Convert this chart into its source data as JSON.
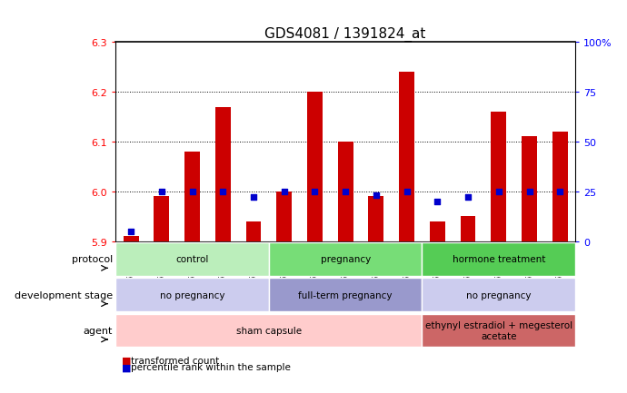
{
  "title": "GDS4081 / 1391824_at",
  "samples": [
    "GSM796392",
    "GSM796393",
    "GSM796394",
    "GSM796395",
    "GSM796396",
    "GSM796397",
    "GSM796398",
    "GSM796399",
    "GSM796400",
    "GSM796401",
    "GSM796402",
    "GSM796403",
    "GSM796404",
    "GSM796405",
    "GSM796406"
  ],
  "transformed_count": [
    5.91,
    5.99,
    6.08,
    6.17,
    5.94,
    6.0,
    6.2,
    6.1,
    5.99,
    6.24,
    5.94,
    5.95,
    6.16,
    6.11,
    6.12
  ],
  "percentile_rank": [
    5,
    25,
    25,
    25,
    22,
    25,
    25,
    25,
    23,
    25,
    20,
    22,
    25,
    25,
    25
  ],
  "ylim_left": [
    5.9,
    6.3
  ],
  "ylim_right": [
    0,
    100
  ],
  "yticks_left": [
    5.9,
    6.0,
    6.1,
    6.2,
    6.3
  ],
  "yticks_right": [
    0,
    25,
    50,
    75,
    100
  ],
  "ytick_labels_right": [
    "0",
    "25",
    "50",
    "75",
    "100%"
  ],
  "grid_values": [
    6.0,
    6.1,
    6.2
  ],
  "bar_color": "#cc0000",
  "dot_color": "#0000cc",
  "bar_bottom": 5.9,
  "protocol_groups": [
    {
      "label": "control",
      "start": 0,
      "end": 4,
      "color": "#bbeebb"
    },
    {
      "label": "pregnancy",
      "start": 5,
      "end": 9,
      "color": "#77dd77"
    },
    {
      "label": "hormone treatment",
      "start": 10,
      "end": 14,
      "color": "#55cc55"
    }
  ],
  "dev_stage_groups": [
    {
      "label": "no pregnancy",
      "start": 0,
      "end": 4,
      "color": "#ccccee"
    },
    {
      "label": "full-term pregnancy",
      "start": 5,
      "end": 9,
      "color": "#9999cc"
    },
    {
      "label": "no pregnancy",
      "start": 10,
      "end": 14,
      "color": "#ccccee"
    }
  ],
  "agent_groups": [
    {
      "label": "sham capsule",
      "start": 0,
      "end": 9,
      "color": "#ffcccc"
    },
    {
      "label": "ethynyl estradiol + megesterol\nacetate",
      "start": 10,
      "end": 14,
      "color": "#cc6666"
    }
  ],
  "row_labels": [
    "protocol",
    "development stage",
    "agent"
  ],
  "legend_bar_color": "#cc0000",
  "legend_dot_color": "#0000cc",
  "legend_text1": "transformed count",
  "legend_text2": "percentile rank within the sample"
}
